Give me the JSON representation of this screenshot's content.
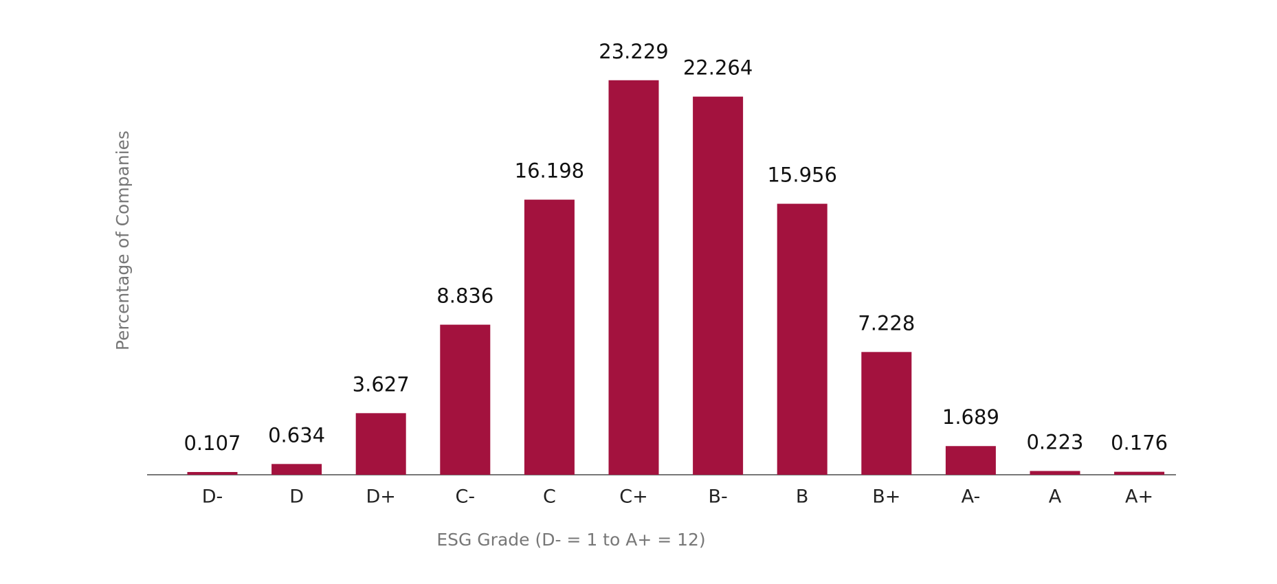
{
  "chart_data": {
    "type": "bar",
    "x_label": "ESG Grade (D- = 1 to A+ = 12)",
    "y_label": "Percentage of Companies",
    "categories": [
      "D-",
      "D",
      "D+",
      "C-",
      "C",
      "C+",
      "B-",
      "B",
      "B+",
      "A-",
      "A",
      "A+"
    ],
    "values": [
      0.107,
      0.634,
      3.627,
      8.836,
      16.198,
      23.229,
      22.264,
      15.956,
      7.228,
      1.689,
      0.223,
      0.176
    ],
    "color": "#a3123e",
    "ylim": [
      0,
      25
    ]
  }
}
